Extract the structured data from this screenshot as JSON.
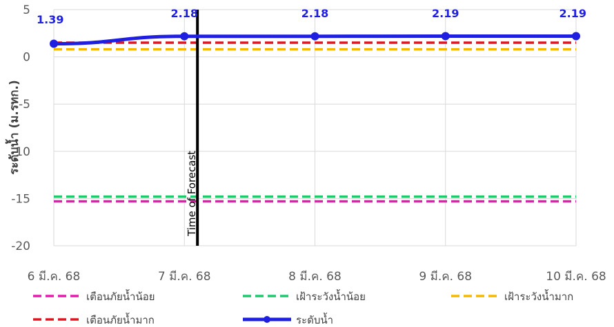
{
  "chart_data": {
    "type": "line",
    "categories": [
      "6 มี.ค. 68",
      "7 มี.ค. 68",
      "8 มี.ค. 68",
      "9 มี.ค. 68",
      "10 มี.ค. 68"
    ],
    "ylabel": "ระดับน้ำ (ม.รทก.)",
    "ylim": [
      -20,
      5
    ],
    "yticks": [
      5,
      0,
      -5,
      -10,
      -15,
      -20
    ],
    "grid": true,
    "legend_position": "bottom",
    "forecast_marker": {
      "label": "Time of Forecast",
      "x": 1.1
    },
    "series": [
      {
        "name": "เตือนภัยน้ำน้อย",
        "values": [
          -15.3,
          -15.3,
          -15.3,
          -15.3,
          -15.3
        ],
        "color": "#e61cae",
        "style": "dashed"
      },
      {
        "name": "เฝ้าระวังน้ำน้อย",
        "values": [
          -14.8,
          -14.8,
          -14.8,
          -14.8,
          -14.8
        ],
        "color": "#1ec86b",
        "style": "dashed"
      },
      {
        "name": "เฝ้าระวังน้ำมาก",
        "values": [
          0.8,
          0.8,
          0.8,
          0.8,
          0.8
        ],
        "color": "#f5b800",
        "style": "dashed"
      },
      {
        "name": "เตือนภัยน้ำมาก",
        "values": [
          1.5,
          1.5,
          1.5,
          1.5,
          1.5
        ],
        "color": "#e0141e",
        "style": "dashed"
      },
      {
        "name": "ระดับน้ำ",
        "values": [
          1.39,
          2.18,
          2.18,
          2.19,
          2.19
        ],
        "labels": [
          "1.39",
          "2.18",
          "2.18",
          "2.19",
          "2.19"
        ],
        "color": "#1f1fe0",
        "style": "solid-markers"
      }
    ]
  }
}
